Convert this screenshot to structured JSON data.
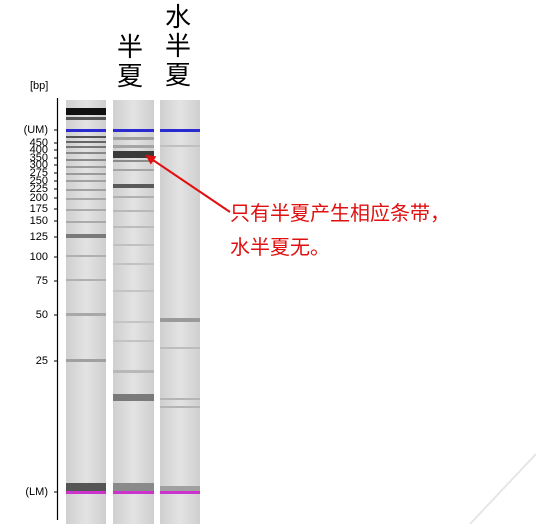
{
  "lane_headers": {
    "lane2": "半夏",
    "lane3": "水半夏"
  },
  "axis": {
    "unit": "[bp]"
  },
  "ladder_labels": [
    "(UM)",
    "450",
    "400",
    "350",
    "300",
    "275",
    "250",
    "225",
    "200",
    "175",
    "150",
    "125",
    "100",
    "75",
    "50",
    "25",
    "(LM)"
  ],
  "annotation": {
    "line1": "只有半夏产生相应条带，",
    "line2": "水半夏无。"
  },
  "colors": {
    "upper_marker": "#2a2ad0",
    "lower_marker": "#cc33cc",
    "annotation_text": "#e01010",
    "arrow": "#e01010"
  }
}
